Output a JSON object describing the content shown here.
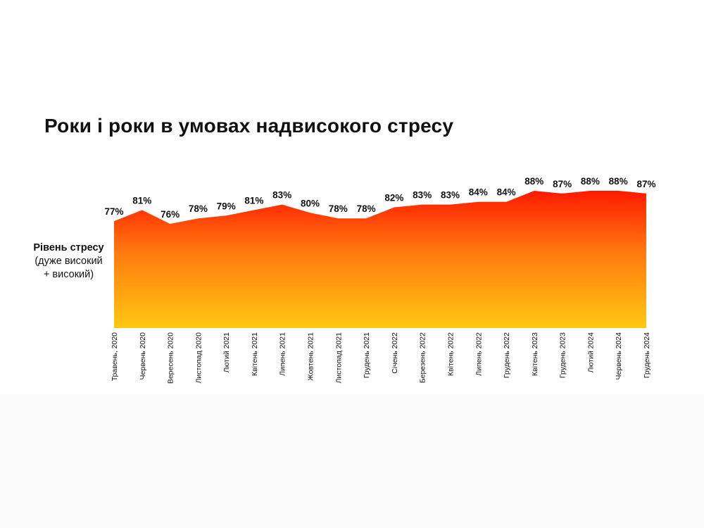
{
  "title": "Роки і роки в умовах надвисокого стресу",
  "colors": {
    "gradient_top": "#ff1a00",
    "gradient_mid": "#ff7a10",
    "gradient_bottom": "#ffc812",
    "text": "#111111"
  },
  "chart_data": {
    "type": "area",
    "title": "Роки і роки в умовах надвисокого стресу",
    "ylabel": "Рівень стресу",
    "ylabel_sub": "(дуже високий + високий)",
    "ylabel_sub_lines": [
      "(дуже високий",
      "+ високий)"
    ],
    "xlabel": "",
    "unit": "%",
    "ylim": [
      0,
      100
    ],
    "grid": false,
    "categories": [
      "Травень, 2020",
      "Червень 2020",
      "Вересень 2020",
      "Листопад 2020",
      "Лютий 2021",
      "Квітень 2021",
      "Липень 2021",
      "Жовтень 2021",
      "Листопад 2021",
      "Грудень 2021",
      "Січень 2022",
      "Березень 2022",
      "Квітень 2022",
      "Липень 2022",
      "Грудень 2022",
      "Квітень 2023",
      "Грудень 2023",
      "Лютий 2024",
      "Червень 2024",
      "Грудень 2024"
    ],
    "values": [
      77,
      81,
      76,
      78,
      79,
      81,
      83,
      80,
      78,
      78,
      82,
      83,
      83,
      84,
      84,
      88,
      87,
      88,
      88,
      87
    ],
    "value_labels": [
      "77%",
      "81%",
      "76%",
      "78%",
      "79%",
      "81%",
      "83%",
      "80%",
      "78%",
      "78%",
      "82%",
      "83%",
      "83%",
      "84%",
      "84%",
      "88%",
      "87%",
      "88%",
      "88%",
      "87%"
    ]
  }
}
